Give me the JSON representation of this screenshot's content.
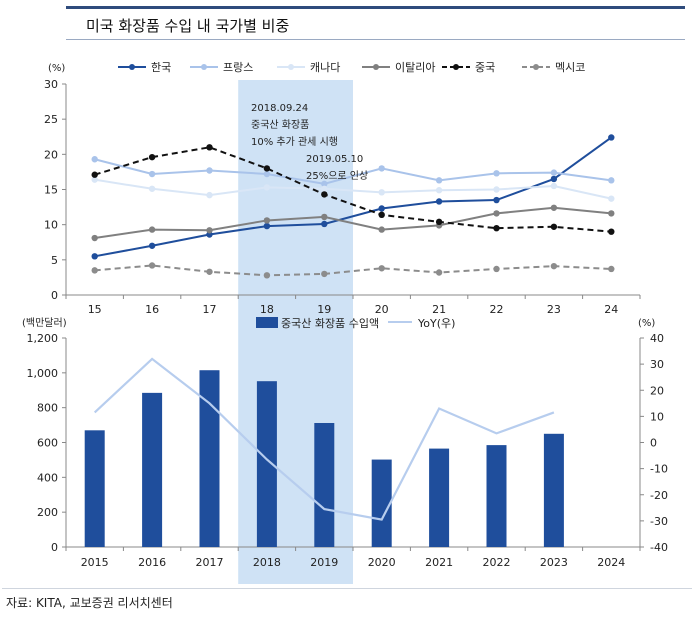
{
  "page": {
    "title": "미국 화장품 수입 내 국가별 비중",
    "source": "자료: KITA, 교보증권 리서치센터"
  },
  "colors": {
    "korea": "#1f4e9c",
    "france": "#a9c3ea",
    "canada": "#d9e6f6",
    "italy": "#808080",
    "china": "#111111",
    "mexico": "#8c8c8c",
    "bar": "#1f4e9c",
    "yoy": "#b7cdee",
    "highlight": "#cfe2f5",
    "topbar": "#2f4b7c"
  },
  "chart_data": [
    {
      "type": "line",
      "ylabel": "(%)",
      "x": [
        "15",
        "16",
        "17",
        "18",
        "19",
        "20",
        "21",
        "22",
        "23",
        "24"
      ],
      "ylim": [
        0,
        30
      ],
      "yticks": [
        0,
        5,
        10,
        15,
        20,
        25,
        30
      ],
      "grid": false,
      "legend": "top",
      "highlight_span": [
        "18",
        "19"
      ],
      "series": [
        {
          "name": "한국",
          "style": "solid-marker",
          "color_key": "korea",
          "values": [
            5.5,
            7.0,
            8.6,
            9.8,
            10.1,
            12.3,
            13.3,
            13.5,
            16.5,
            22.4
          ]
        },
        {
          "name": "프랑스",
          "style": "solid-marker",
          "color_key": "france",
          "values": [
            19.3,
            17.2,
            17.7,
            17.2,
            15.8,
            18.0,
            16.3,
            17.3,
            17.4,
            16.3
          ]
        },
        {
          "name": "캐나다",
          "style": "solid-marker",
          "color_key": "canada",
          "values": [
            16.4,
            15.1,
            14.2,
            15.3,
            15.1,
            14.6,
            14.9,
            15.0,
            15.5,
            13.7
          ]
        },
        {
          "name": "이탈리아",
          "style": "solid-marker",
          "color_key": "italy",
          "values": [
            8.1,
            9.3,
            9.2,
            10.6,
            11.1,
            9.3,
            9.9,
            11.6,
            12.4,
            11.6
          ]
        },
        {
          "name": "중국",
          "style": "dashed-marker",
          "color_key": "china",
          "values": [
            17.1,
            19.6,
            21.0,
            18.0,
            14.3,
            11.4,
            10.4,
            9.5,
            9.7,
            9.0
          ]
        },
        {
          "name": "멕시코",
          "style": "dashed-marker",
          "color_key": "mexico",
          "values": [
            3.5,
            4.2,
            3.3,
            2.8,
            3.0,
            3.8,
            3.2,
            3.7,
            4.1,
            3.7
          ]
        }
      ],
      "annotations": [
        {
          "text": "2018.09.24"
        },
        {
          "text": "중국산 화장품"
        },
        {
          "text": "10% 추가 관세 시행"
        },
        {
          "text": "2019.05.10"
        },
        {
          "text": "25%으로 인상"
        }
      ]
    },
    {
      "type": "bar",
      "ylabel": "(백만달러)",
      "y2label": "(%)",
      "categories": [
        "2015",
        "2016",
        "2017",
        "2018",
        "2019",
        "2020",
        "2021",
        "2022",
        "2023",
        "2024"
      ],
      "ylim": [
        0,
        1200
      ],
      "yticks": [
        0,
        200,
        400,
        600,
        800,
        1000,
        1200
      ],
      "ytick_labels": [
        "0",
        "200",
        "400",
        "600",
        "800",
        "1,000",
        "1,200"
      ],
      "y2lim": [
        -40,
        40
      ],
      "y2ticks": [
        -40,
        -30,
        -20,
        -10,
        0,
        10,
        20,
        30,
        40
      ],
      "grid": false,
      "legend": "top",
      "highlight_span": [
        "2018",
        "2019"
      ],
      "series": [
        {
          "name": "중국산 화장품 수입액",
          "type": "bar",
          "axis": "left",
          "values": [
            670,
            885,
            1015,
            952,
            712,
            502,
            565,
            585,
            650,
            null
          ]
        },
        {
          "name": "YoY(우)",
          "type": "line",
          "axis": "right",
          "values": [
            11.5,
            32.0,
            15.0,
            -6.5,
            -25.5,
            -29.5,
            13.0,
            3.5,
            11.5,
            null
          ]
        }
      ]
    }
  ]
}
